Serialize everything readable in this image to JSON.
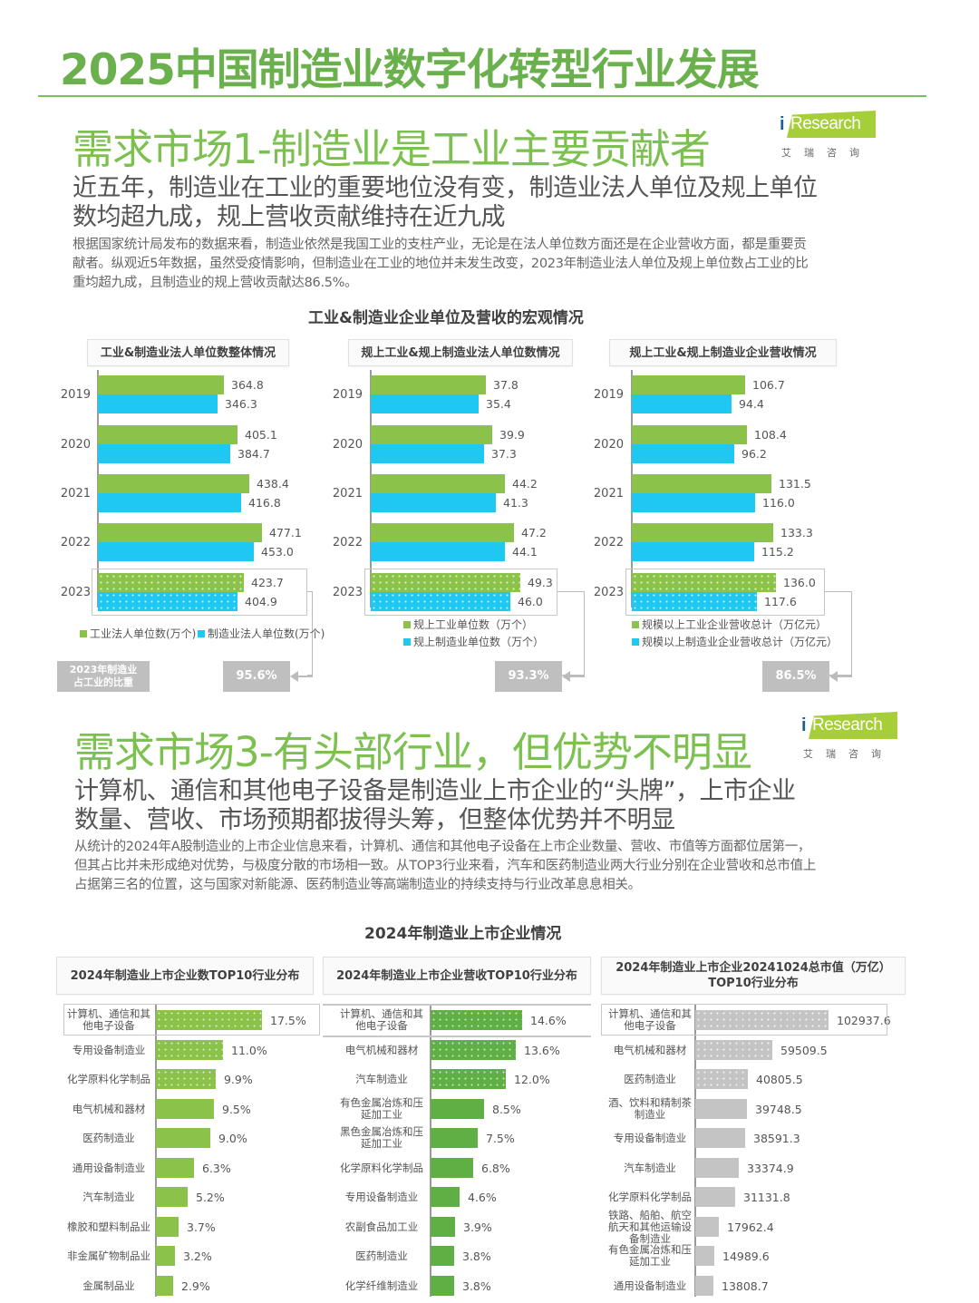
{
  "header": {
    "title": "2025中国制造业数字化转型行业发展"
  },
  "logo": {
    "brand": "Research",
    "brand_i": "i",
    "cn": "艾瑞咨询"
  },
  "section1": {
    "title": "需求市场1-制造业是工业主要贡献者",
    "headline": [
      "近五年，制造业在工业的重要地位没有变，制造业法人单位及规上单位",
      "数均超九成，规上营收贡献维持在近九成"
    ],
    "body": [
      "根据国家统计局发布的数据来看，制造业依然是我国工业的支柱产业，无论是在法人单位数方面还是在企业营收方面，都是重要贡",
      "献者。纵观近5年数据，虽然受疫情影响，但制造业在工业的地位并未发生改变，2023年制造业法人单位及规上单位数占工业的比",
      "重均超九成，且制造业的规上营收贡献达86.5%。"
    ],
    "chart_group_title": "工业&制造业企业单位及营收的宏观情况",
    "note": [
      "2023年制造业",
      "占工业的比重"
    ]
  },
  "section3": {
    "title": "需求市场3-有头部行业，但优势不明显",
    "headline": [
      "计算机、通信和其他电子设备是制造业上市企业的“头牌”，上市企业",
      "数量、营收、市场预期都拔得头筹，但整体优势并不明显"
    ],
    "body": [
      "从统计的2024年A股制造业的上市企业信息来看，计算机、通信和其他电子设备在上市企业数量、营收、市值等方面都位居第一，",
      "但其占比并未形成绝对优势，与极度分散的市场相一致。从TOP3行业来看，汽车和医药制造业两大行业分别在企业营收和总市值上",
      "占据第三名的位置，这与国家对新能源、医药制造业等高端制造业的持续支持与行业改革息息相关。"
    ],
    "chart_group_title": "2024年制造业上市企业情况"
  },
  "colors": {
    "green": "#8bc34a",
    "blue": "#1ec8f0",
    "title_green": "#6ab04c",
    "mid_green": "#5faf45",
    "gray": "#c4c4c4"
  },
  "chart_data": [
    {
      "type": "bar",
      "orientation": "horizontal",
      "title": "工业&制造业法人单位数整体情况",
      "categories": [
        "2019",
        "2020",
        "2021",
        "2022",
        "2023"
      ],
      "series": [
        {
          "name": "工业法人单位数(万个)",
          "values": [
            364.8,
            405.1,
            438.4,
            477.1,
            423.7
          ]
        },
        {
          "name": "制造业法人单位数(万个)",
          "values": [
            346.3,
            384.7,
            416.8,
            453.0,
            404.9
          ]
        }
      ],
      "annotation": "95.6%",
      "legend_position": "bottom"
    },
    {
      "type": "bar",
      "orientation": "horizontal",
      "title": "规上工业&规上制造业法人单位数情况",
      "categories": [
        "2019",
        "2020",
        "2021",
        "2022",
        "2023"
      ],
      "series": [
        {
          "name": "规上工业单位数（万个）",
          "values": [
            37.8,
            39.9,
            44.2,
            47.2,
            49.3
          ]
        },
        {
          "name": "规上制造业单位数（万个）",
          "values": [
            35.4,
            37.3,
            41.3,
            44.1,
            46.0
          ]
        }
      ],
      "annotation": "93.3%",
      "legend_position": "bottom"
    },
    {
      "type": "bar",
      "orientation": "horizontal",
      "title": "规上工业&规上制造业企业营收情况",
      "categories": [
        "2019",
        "2020",
        "2021",
        "2022",
        "2023"
      ],
      "series": [
        {
          "name": "规模以上工业企业营收总计（万亿元）",
          "values": [
            106.7,
            108.4,
            131.5,
            133.3,
            136.0
          ]
        },
        {
          "name": "规模以上制造业企业营收总计（万亿元）",
          "values": [
            94.4,
            96.2,
            116.0,
            115.2,
            117.6
          ]
        }
      ],
      "annotation": "86.5%",
      "legend_position": "bottom"
    },
    {
      "type": "bar",
      "orientation": "horizontal",
      "title": "2024年制造业上市企业数TOP10行业分布",
      "categories": [
        "计算机、通信和其他电子设备",
        "专用设备制造业",
        "化学原料化学制品",
        "电气机械和器材",
        "医药制造业",
        "通用设备制造业",
        "汽车制造业",
        "橡胶和塑料制品业",
        "非金属矿物制品业",
        "金属制品业"
      ],
      "labels": [
        [
          "计算机、通信和其",
          "他电子设备"
        ],
        [
          "专用设备制造业"
        ],
        [
          "化学原料化学制品"
        ],
        [
          "电气机械和器材"
        ],
        [
          "医药制造业"
        ],
        [
          "通用设备制造业"
        ],
        [
          "汽车制造业"
        ],
        [
          "橡胶和塑料制品业"
        ],
        [
          "非金属矿物制品业"
        ],
        [
          "金属制品业"
        ]
      ],
      "values": [
        17.5,
        11.0,
        9.9,
        9.5,
        9.0,
        6.3,
        5.2,
        3.7,
        3.2,
        2.9
      ],
      "display": [
        "17.5%",
        "11.0%",
        "9.9%",
        "9.5%",
        "9.0%",
        "6.3%",
        "5.2%",
        "3.7%",
        "3.2%",
        "2.9%"
      ],
      "unit": "%"
    },
    {
      "type": "bar",
      "orientation": "horizontal",
      "title": "2024年制造业上市企业营收TOP10行业分布",
      "categories": [
        "计算机、通信和其他电子设备",
        "电气机械和器材",
        "汽车制造业",
        "有色金属冶炼和压延加工业",
        "黑色金属冶炼和压延加工业",
        "化学原料化学制品",
        "专用设备制造业",
        "农副食品加工业",
        "医药制造业",
        "化学纤维制造业"
      ],
      "labels": [
        [
          "计算机、通信和其",
          "他电子设备"
        ],
        [
          "电气机械和器材"
        ],
        [
          "汽车制造业"
        ],
        [
          "有色金属冶炼和压",
          "延加工业"
        ],
        [
          "黑色金属冶炼和压",
          "延加工业"
        ],
        [
          "化学原料化学制品"
        ],
        [
          "专用设备制造业"
        ],
        [
          "农副食品加工业"
        ],
        [
          "医药制造业"
        ],
        [
          "化学纤维制造业"
        ]
      ],
      "values": [
        14.6,
        13.6,
        12.0,
        8.5,
        7.5,
        6.8,
        4.6,
        3.9,
        3.8,
        3.8
      ],
      "display": [
        "14.6%",
        "13.6%",
        "12.0%",
        "8.5%",
        "7.5%",
        "6.8%",
        "4.6%",
        "3.9%",
        "3.8%",
        "3.8%"
      ],
      "unit": "%"
    },
    {
      "type": "bar",
      "orientation": "horizontal",
      "title": "2024年制造业上市企业20241024总市值（万亿）TOP10行业分布",
      "title_lines": [
        "2024年制造业上市企业20241024总市值（万亿）",
        "TOP10行业分布"
      ],
      "categories": [
        "计算机、通信和其他电子设备",
        "电气机械和器材",
        "医药制造业",
        "酒、饮料和精制茶制造业",
        "专用设备制造业",
        "汽车制造业",
        "化学原料化学制品",
        "铁路、船舶、航空航天和其他运输设备制造业",
        "有色金属冶炼和压延加工业",
        "通用设备制造业"
      ],
      "labels": [
        [
          "计算机、通信和其",
          "他电子设备"
        ],
        [
          "电气机械和器材"
        ],
        [
          "医药制造业"
        ],
        [
          "酒、饮料和精制茶",
          "制造业"
        ],
        [
          "专用设备制造业"
        ],
        [
          "汽车制造业"
        ],
        [
          "化学原料化学制品"
        ],
        [
          "铁路、船舶、航空",
          "航天和其他运输设",
          "备制造业"
        ],
        [
          "有色金属冶炼和压",
          "延加工业"
        ],
        [
          "通用设备制造业"
        ]
      ],
      "values": [
        102937.6,
        59509.5,
        40805.5,
        39748.5,
        38591.3,
        33374.9,
        31131.8,
        17962.4,
        14989.6,
        13808.7
      ],
      "display": [
        "102937.6",
        "59509.5",
        "40805.5",
        "39748.5",
        "38591.3",
        "33374.9",
        "31131.8",
        "17962.4",
        "14989.6",
        "13808.7"
      ]
    }
  ]
}
